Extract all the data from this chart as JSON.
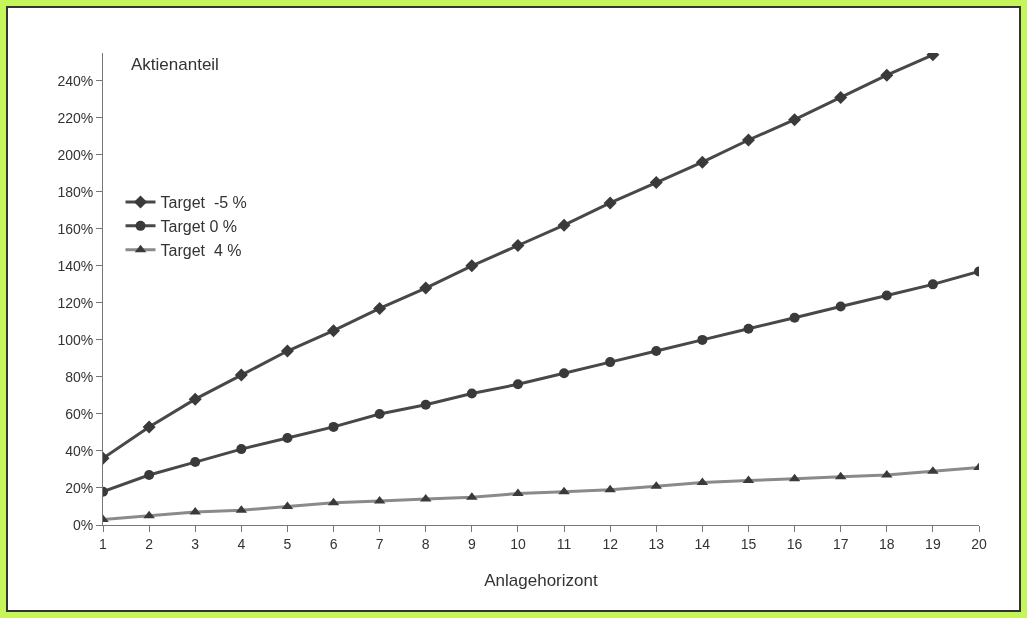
{
  "chart_data": {
    "type": "line",
    "xlabel": "Anlagehorizont",
    "ylabel": "Aktienanteil",
    "x": [
      1,
      2,
      3,
      4,
      5,
      6,
      7,
      8,
      9,
      10,
      11,
      12,
      13,
      14,
      15,
      16,
      17,
      18,
      19,
      20
    ],
    "series": [
      {
        "name": "Target  -5 %",
        "color": "#484848",
        "marker": "diamond",
        "values": [
          36,
          53,
          68,
          81,
          94,
          105,
          117,
          128,
          140,
          151,
          162,
          174,
          185,
          196,
          208,
          219,
          231,
          243,
          254,
          null
        ]
      },
      {
        "name": "Target 0 %",
        "color": "#484848",
        "marker": "circle",
        "values": [
          18,
          27,
          34,
          41,
          47,
          53,
          60,
          65,
          71,
          76,
          82,
          88,
          94,
          100,
          106,
          112,
          118,
          124,
          130,
          137
        ]
      },
      {
        "name": "Target  4 %",
        "color": "#8a8a8a",
        "marker": "triangle",
        "values": [
          3,
          5,
          7,
          8,
          10,
          12,
          13,
          14,
          15,
          17,
          18,
          19,
          21,
          23,
          24,
          25,
          26,
          27,
          29,
          31
        ]
      }
    ],
    "xlim": [
      1,
      20
    ],
    "xticks": [
      1,
      2,
      3,
      4,
      5,
      6,
      7,
      8,
      9,
      10,
      11,
      12,
      13,
      14,
      15,
      16,
      17,
      18,
      19,
      20
    ],
    "ylim": [
      0,
      255
    ],
    "yticks": [
      {
        "value": 0,
        "label": "0%"
      },
      {
        "value": 20,
        "label": "20%"
      },
      {
        "value": 40,
        "label": "40%"
      },
      {
        "value": 60,
        "label": "60%"
      },
      {
        "value": 80,
        "label": "80%"
      },
      {
        "value": 100,
        "label": "100%"
      },
      {
        "value": 120,
        "label": "120%"
      },
      {
        "value": 140,
        "label": "140%"
      },
      {
        "value": 160,
        "label": "160%"
      },
      {
        "value": 180,
        "label": "180%"
      },
      {
        "value": 200,
        "label": "200%"
      },
      {
        "value": 220,
        "label": "220%"
      },
      {
        "value": 240,
        "label": "240%"
      }
    ],
    "grid": false,
    "legend": "top left",
    "line_style": "solid"
  }
}
